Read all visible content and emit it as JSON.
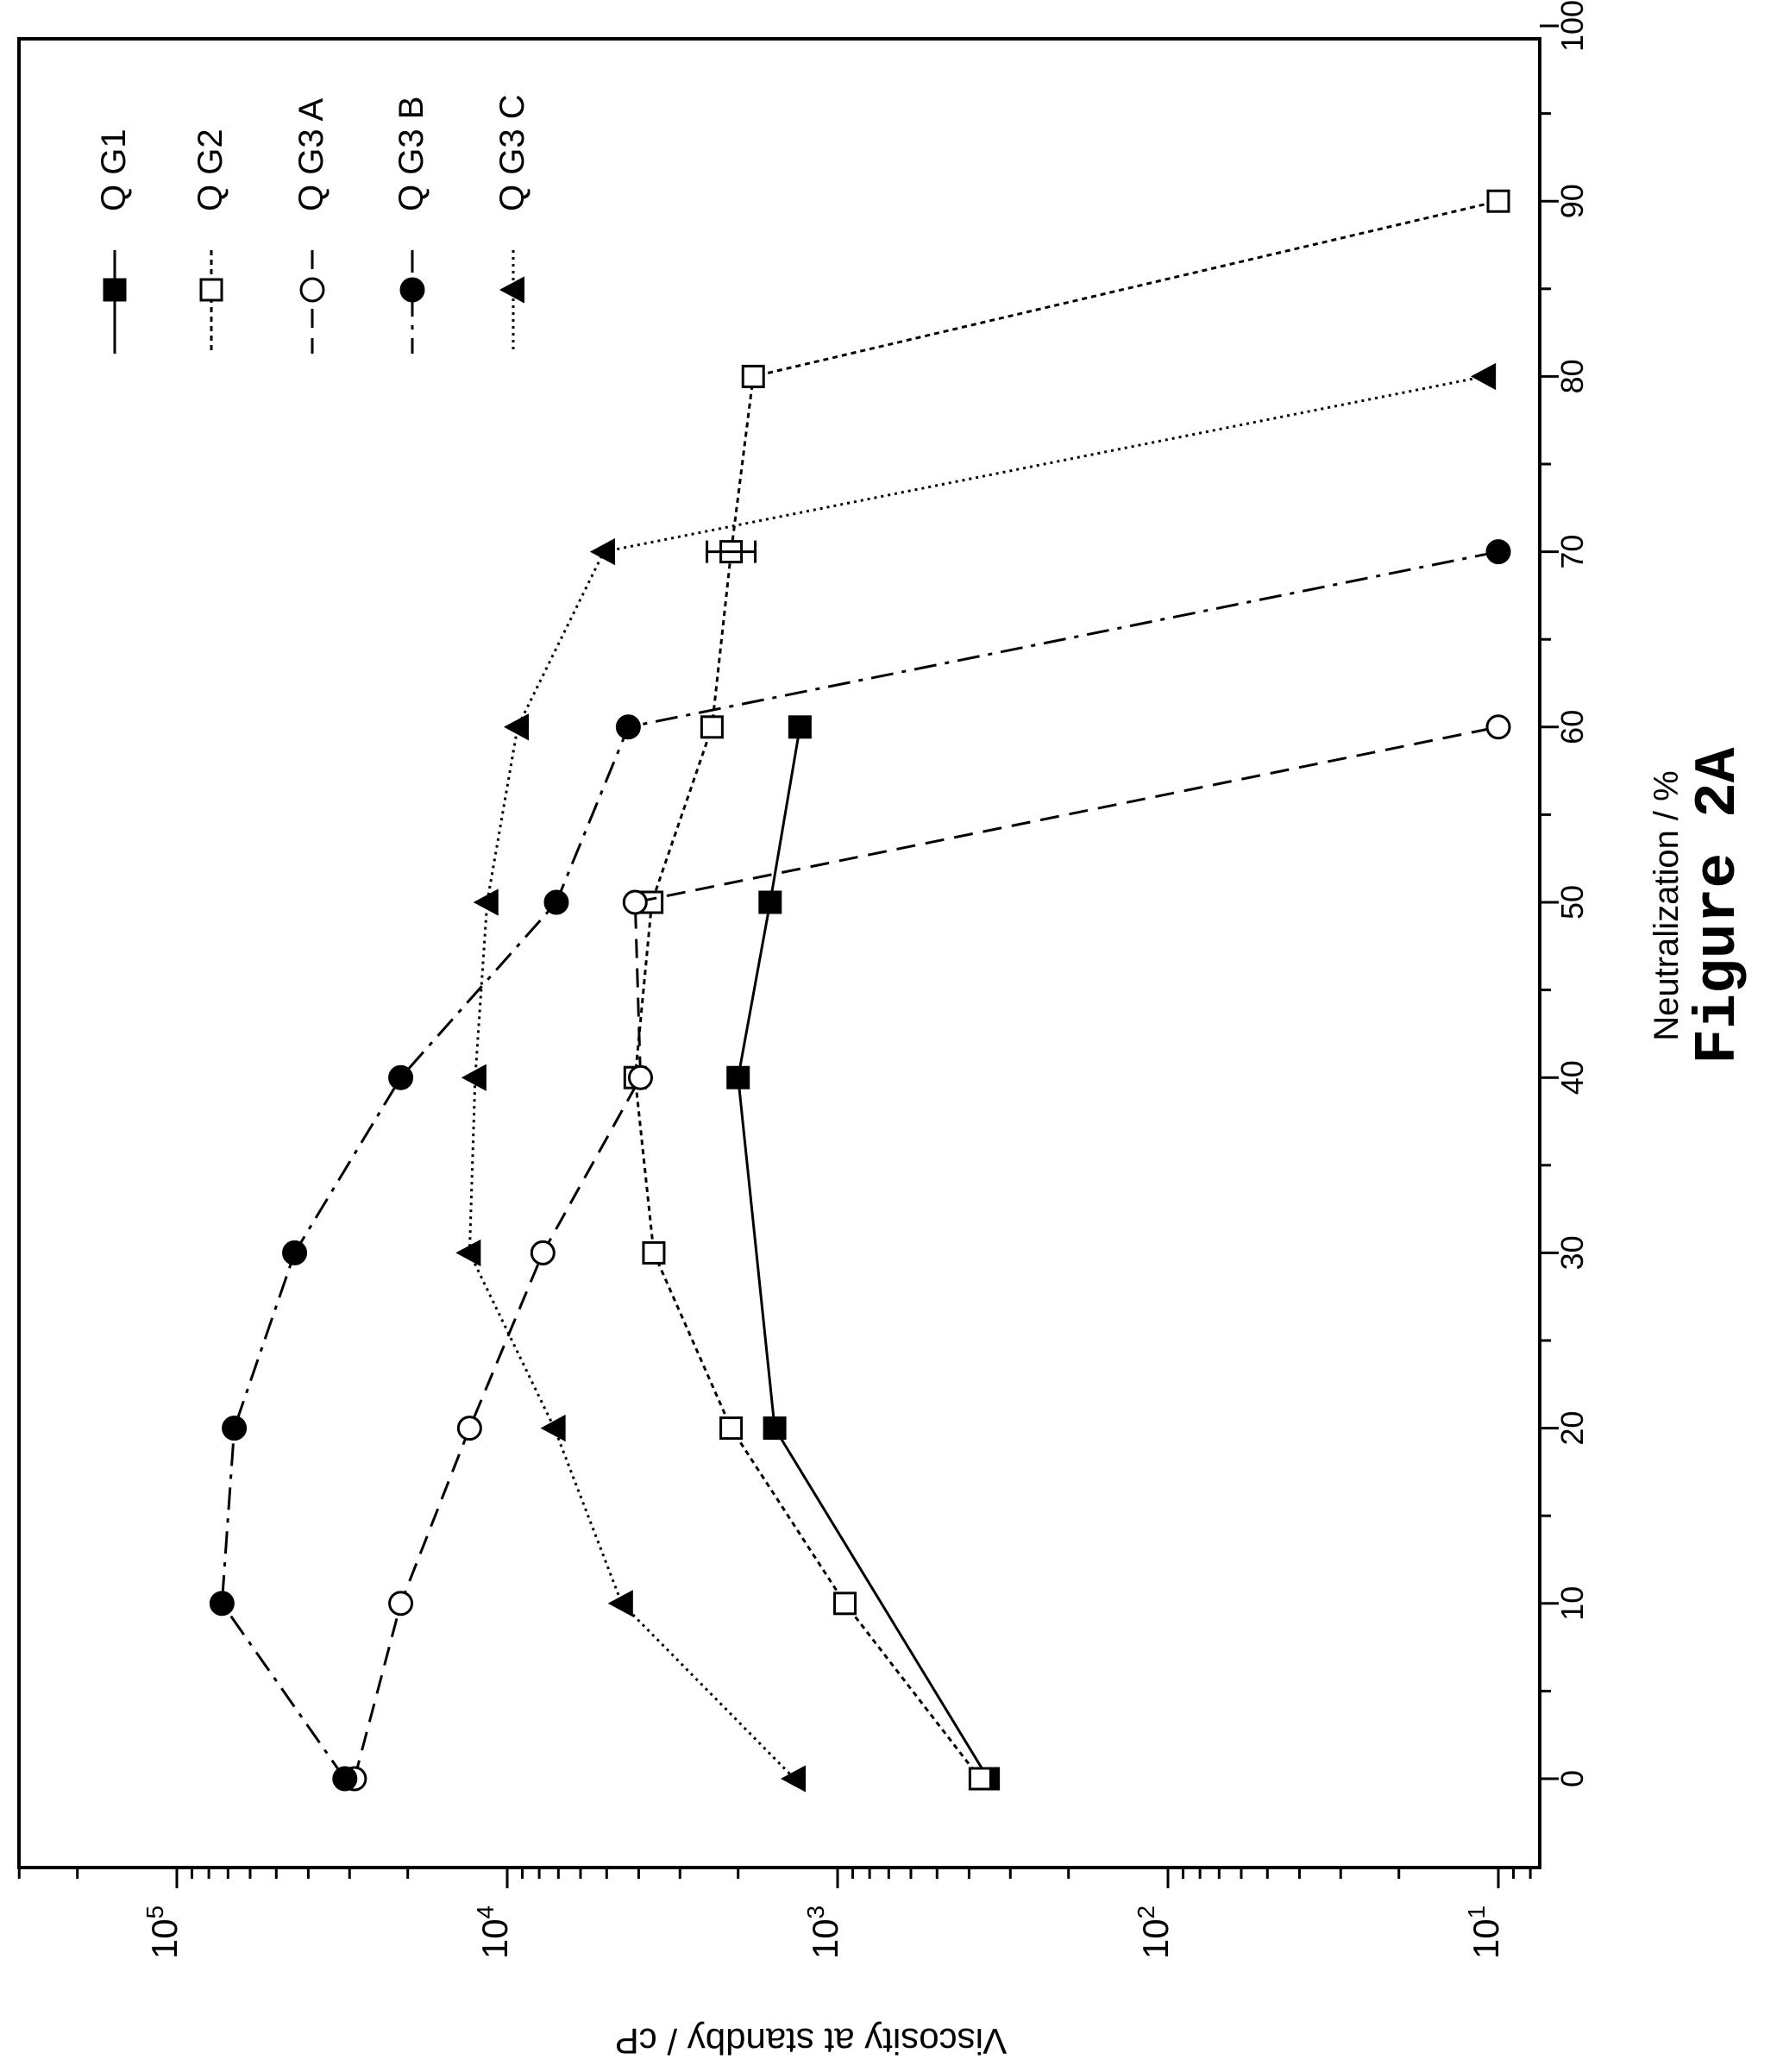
{
  "figure": {
    "caption": "Figure 2A"
  },
  "chart_data": {
    "type": "line",
    "orientation": "rotated 90 degrees counter-clockwise",
    "xlabel": "Neutralization / %",
    "ylabel": "Viscosity at standby / cP",
    "xlim": [
      -5,
      100
    ],
    "ylim": [
      7,
      300000
    ],
    "yscale": "log",
    "x_ticks": [
      0,
      10,
      20,
      30,
      40,
      50,
      60,
      70,
      80,
      90,
      100
    ],
    "y_ticks": [
      {
        "base": "10",
        "exp": "5",
        "value": 100000
      },
      {
        "base": "10",
        "exp": "4",
        "value": 10000
      },
      {
        "base": "10",
        "exp": "3",
        "value": 1000
      },
      {
        "base": "10",
        "exp": "2",
        "value": 100
      },
      {
        "base": "10",
        "exp": "1",
        "value": 10
      }
    ],
    "grid": false,
    "legend_position": "top-left",
    "series": [
      {
        "name": "Q G1",
        "marker": "square-filled",
        "dash": "solid",
        "x": [
          0,
          20,
          40,
          50,
          60
        ],
        "y": [
          350,
          1550,
          2000,
          1600,
          1300
        ]
      },
      {
        "name": "Q G2",
        "marker": "square-open",
        "dash": "dotted",
        "x": [
          0,
          10,
          20,
          30,
          40,
          50,
          60,
          70,
          80,
          90
        ],
        "y": [
          370,
          950,
          2100,
          3600,
          4100,
          3650,
          2400,
          2100,
          1800,
          10
        ]
      },
      {
        "name": "Q G3 A",
        "marker": "circle-open",
        "dash": "dashed",
        "x": [
          0,
          10,
          20,
          30,
          40,
          50,
          60
        ],
        "y": [
          29000,
          21000,
          13000,
          7800,
          3950,
          4100,
          10
        ]
      },
      {
        "name": "Q G3 B",
        "marker": "circle-filled",
        "dash": "dashdot",
        "x": [
          0,
          10,
          20,
          30,
          40,
          50,
          60,
          70
        ],
        "y": [
          31000,
          73000,
          67000,
          44000,
          21000,
          7100,
          4300,
          10
        ]
      },
      {
        "name": "Q G3 C",
        "marker": "triangle-filled",
        "dash": "densedot",
        "x": [
          0,
          10,
          20,
          30,
          40,
          50,
          60,
          70,
          80
        ],
        "y": [
          1350,
          4500,
          7200,
          13000,
          12500,
          11500,
          9300,
          5100,
          11
        ]
      }
    ]
  }
}
